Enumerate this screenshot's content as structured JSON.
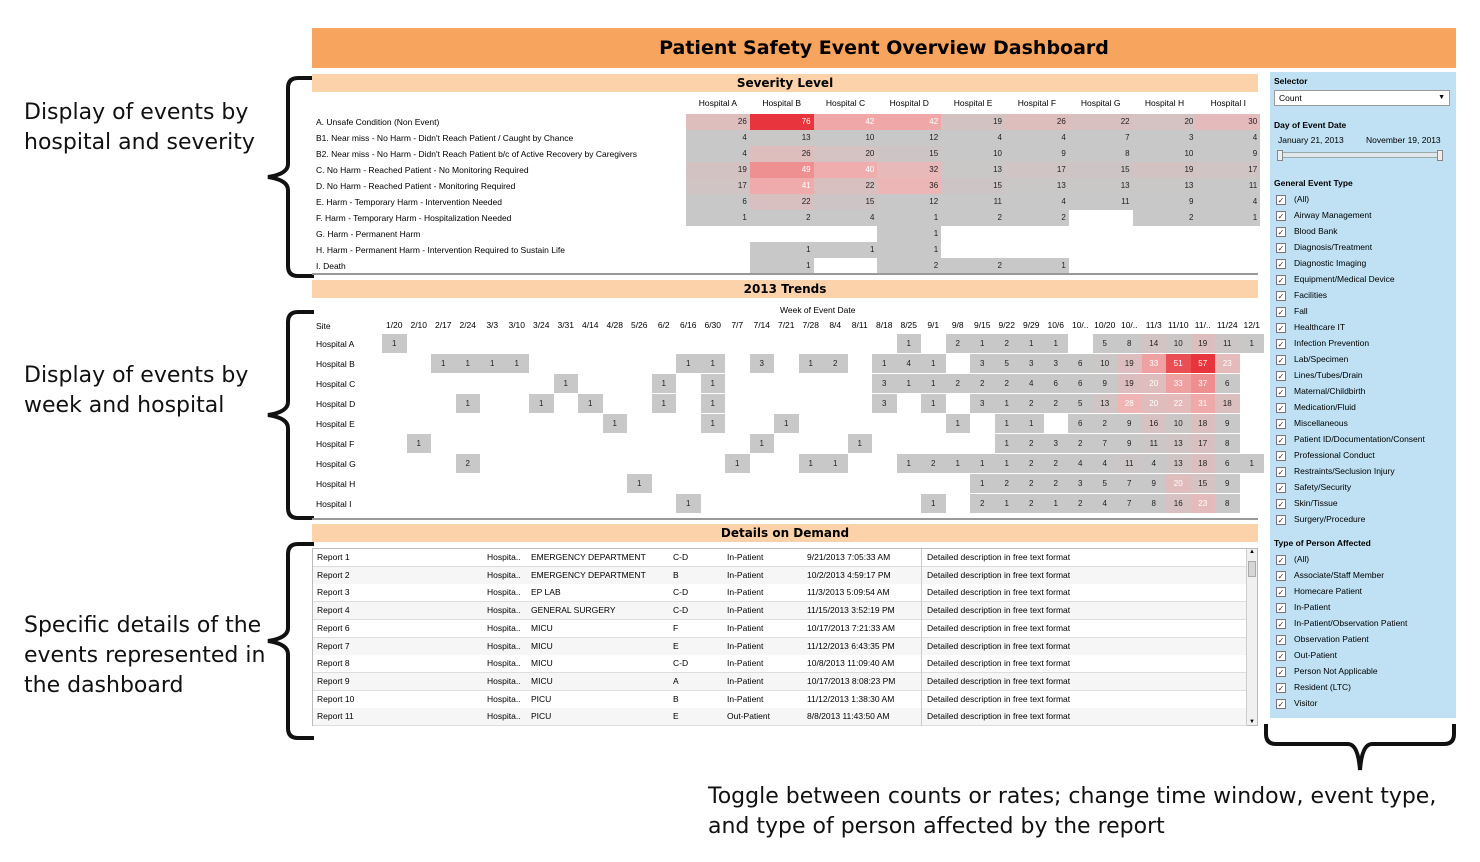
{
  "title": "Patient Safety Event Overview Dashboard",
  "annotations": {
    "a1": [
      "Display of events by",
      "hospital and severity"
    ],
    "a2": [
      "Display of events by",
      "week and hospital"
    ],
    "a3": [
      "Specific details of the",
      "events represented in",
      "the dashboard"
    ],
    "a4": [
      "Toggle between counts or rates; change time window, event type,",
      "and type of person affected by the report"
    ]
  },
  "severity": {
    "header": "Severity Level",
    "hospitals": [
      "Hospital A",
      "Hospital B",
      "Hospital C",
      "Hospital D",
      "Hospital E",
      "Hospital F",
      "Hospital G",
      "Hospital H",
      "Hospital I"
    ],
    "rows": [
      {
        "label": "A. Unsafe Condition (Non Event)",
        "values": [
          26,
          76,
          42,
          42,
          19,
          26,
          22,
          20,
          30
        ]
      },
      {
        "label": "B1. Near miss - No Harm - Didn't Reach Patient / Caught by Chance",
        "values": [
          4,
          13,
          10,
          12,
          4,
          4,
          7,
          3,
          4
        ]
      },
      {
        "label": "B2. Near miss - No Harm - Didn't Reach Patient b/c of Active Recovery by Caregivers",
        "values": [
          4,
          26,
          20,
          15,
          10,
          9,
          8,
          10,
          9
        ]
      },
      {
        "label": "C. No Harm - Reached Patient - No Monitoring Required",
        "values": [
          19,
          49,
          40,
          32,
          13,
          17,
          15,
          19,
          17
        ]
      },
      {
        "label": "D. No Harm - Reached Patient - Monitoring Required",
        "values": [
          17,
          41,
          22,
          36,
          15,
          13,
          13,
          13,
          11
        ]
      },
      {
        "label": "E. Harm - Temporary Harm - Intervention Needed",
        "values": [
          6,
          22,
          15,
          12,
          11,
          4,
          11,
          9,
          4
        ]
      },
      {
        "label": "F. Harm - Temporary Harm - Hospitalization Needed",
        "values": [
          1,
          2,
          4,
          1,
          2,
          2,
          null,
          2,
          1
        ]
      },
      {
        "label": "G. Harm - Permanent Harm",
        "values": [
          null,
          null,
          null,
          1,
          null,
          null,
          null,
          null,
          null
        ]
      },
      {
        "label": "H. Harm - Permanent Harm - Intervention Required to Sustain Life",
        "values": [
          null,
          1,
          1,
          1,
          null,
          null,
          null,
          null,
          null
        ]
      },
      {
        "label": "I. Death",
        "values": [
          null,
          1,
          null,
          2,
          2,
          1,
          null,
          null,
          null
        ]
      }
    ]
  },
  "trends": {
    "header": "2013 Trends",
    "subheader": "Week of Event Date",
    "site_label": "Site",
    "weeks": [
      "1/20",
      "2/10",
      "2/17",
      "2/24",
      "3/3",
      "3/10",
      "3/24",
      "3/31",
      "4/14",
      "4/28",
      "5/26",
      "6/2",
      "6/16",
      "6/30",
      "7/7",
      "7/14",
      "7/21",
      "7/28",
      "8/4",
      "8/11",
      "8/18",
      "8/25",
      "9/1",
      "9/8",
      "9/15",
      "9/22",
      "9/29",
      "10/6",
      "10/..",
      "10/20",
      "10/..",
      "11/3",
      "11/10",
      "11/..",
      "11/24",
      "12/1"
    ],
    "rows": [
      {
        "site": "Hospital A",
        "values": [
          1,
          null,
          null,
          null,
          null,
          null,
          null,
          null,
          null,
          null,
          null,
          null,
          null,
          null,
          null,
          null,
          null,
          null,
          null,
          null,
          null,
          1,
          null,
          2,
          1,
          2,
          1,
          1,
          null,
          5,
          8,
          14,
          10,
          19,
          11,
          1
        ]
      },
      {
        "site": "Hospital B",
        "values": [
          null,
          null,
          1,
          1,
          1,
          1,
          null,
          null,
          null,
          null,
          null,
          null,
          1,
          1,
          null,
          3,
          null,
          1,
          2,
          null,
          1,
          4,
          1,
          null,
          3,
          5,
          3,
          3,
          6,
          10,
          19,
          33,
          51,
          57,
          23,
          null
        ]
      },
      {
        "site": "Hospital C",
        "values": [
          null,
          null,
          null,
          null,
          null,
          null,
          null,
          1,
          null,
          null,
          null,
          1,
          null,
          1,
          null,
          null,
          null,
          null,
          null,
          null,
          3,
          1,
          1,
          2,
          2,
          2,
          4,
          6,
          6,
          9,
          19,
          20,
          33,
          37,
          6,
          null
        ]
      },
      {
        "site": "Hospital D",
        "values": [
          null,
          null,
          null,
          1,
          null,
          null,
          1,
          null,
          1,
          null,
          null,
          1,
          null,
          1,
          null,
          null,
          null,
          null,
          null,
          null,
          3,
          null,
          1,
          null,
          3,
          1,
          2,
          2,
          5,
          13,
          28,
          20,
          22,
          31,
          18,
          null
        ]
      },
      {
        "site": "Hospital E",
        "values": [
          null,
          null,
          null,
          null,
          null,
          null,
          null,
          null,
          null,
          1,
          null,
          null,
          null,
          1,
          null,
          null,
          1,
          null,
          null,
          null,
          null,
          null,
          null,
          1,
          null,
          1,
          1,
          null,
          6,
          2,
          9,
          16,
          10,
          18,
          9,
          null
        ]
      },
      {
        "site": "Hospital F",
        "values": [
          null,
          1,
          null,
          null,
          null,
          null,
          null,
          null,
          null,
          null,
          null,
          null,
          null,
          null,
          null,
          1,
          null,
          null,
          null,
          1,
          null,
          null,
          null,
          null,
          null,
          1,
          2,
          3,
          2,
          7,
          9,
          11,
          13,
          17,
          8,
          null
        ]
      },
      {
        "site": "Hospital G",
        "values": [
          null,
          null,
          null,
          2,
          null,
          null,
          null,
          null,
          null,
          null,
          null,
          null,
          null,
          null,
          1,
          null,
          null,
          1,
          1,
          null,
          null,
          1,
          2,
          1,
          1,
          1,
          2,
          2,
          4,
          4,
          11,
          4,
          13,
          18,
          6,
          1
        ]
      },
      {
        "site": "Hospital H",
        "values": [
          null,
          null,
          null,
          null,
          null,
          null,
          null,
          null,
          null,
          null,
          1,
          null,
          null,
          null,
          null,
          null,
          null,
          null,
          null,
          null,
          null,
          null,
          null,
          null,
          1,
          2,
          2,
          2,
          3,
          5,
          7,
          9,
          20,
          15,
          9,
          null
        ]
      },
      {
        "site": "Hospital I",
        "values": [
          null,
          null,
          null,
          null,
          null,
          null,
          null,
          null,
          null,
          null,
          null,
          null,
          1,
          null,
          null,
          null,
          null,
          null,
          null,
          null,
          null,
          null,
          1,
          null,
          2,
          1,
          2,
          1,
          2,
          4,
          7,
          8,
          16,
          23,
          8,
          null
        ]
      }
    ]
  },
  "details": {
    "header": "Details on Demand",
    "rows": [
      {
        "report": "Report 1",
        "hospital": "Hospita..",
        "dept": "EMERGENCY DEPARTMENT",
        "sev": "C-D",
        "pt": "In-Patient",
        "date": "9/21/2013 7:05:33 AM",
        "desc": "Detailed description in free text format"
      },
      {
        "report": "Report 2",
        "hospital": "Hospita..",
        "dept": "EMERGENCY DEPARTMENT",
        "sev": "B",
        "pt": "In-Patient",
        "date": "10/2/2013 4:59:17 PM",
        "desc": "Detailed description in free text format"
      },
      {
        "report": "Report 3",
        "hospital": "Hospita..",
        "dept": "EP LAB",
        "sev": "C-D",
        "pt": "In-Patient",
        "date": "11/3/2013 5:09:54 AM",
        "desc": "Detailed description in free text format"
      },
      {
        "report": "Report 4",
        "hospital": "Hospita..",
        "dept": "GENERAL SURGERY",
        "sev": "C-D",
        "pt": "In-Patient",
        "date": "11/15/2013 3:52:19 PM",
        "desc": "Detailed description in free text format"
      },
      {
        "report": "Report 6",
        "hospital": "Hospita..",
        "dept": "MICU",
        "sev": "F",
        "pt": "In-Patient",
        "date": "10/17/2013 7:21:33 AM",
        "desc": "Detailed description in free text format"
      },
      {
        "report": "Report 7",
        "hospital": "Hospita..",
        "dept": "MICU",
        "sev": "E",
        "pt": "In-Patient",
        "date": "11/12/2013 6:43:35 PM",
        "desc": "Detailed description in free text format"
      },
      {
        "report": "Report 8",
        "hospital": "Hospita..",
        "dept": "MICU",
        "sev": "C-D",
        "pt": "In-Patient",
        "date": "10/8/2013 11:09:40 AM",
        "desc": "Detailed description in free text format"
      },
      {
        "report": "Report 9",
        "hospital": "Hospita..",
        "dept": "MICU",
        "sev": "A",
        "pt": "In-Patient",
        "date": "10/17/2013 8:08:23 PM",
        "desc": "Detailed description in free text format"
      },
      {
        "report": "Report 10",
        "hospital": "Hospita..",
        "dept": "PICU",
        "sev": "B",
        "pt": "In-Patient",
        "date": "11/12/2013 1:38:30 AM",
        "desc": "Detailed description in free text format"
      },
      {
        "report": "Report 11",
        "hospital": "Hospita..",
        "dept": "PICU",
        "sev": "E",
        "pt": "Out-Patient",
        "date": "8/8/2013 11:43:50 AM",
        "desc": "Detailed description in free text format"
      }
    ]
  },
  "sidebar": {
    "selector_label": "Selector",
    "selector_value": "Count",
    "day_label": "Day of Event Date",
    "date_start": "January 21, 2013",
    "date_end": "November 19, 2013",
    "event_type_label": "General Event Type",
    "event_types": [
      "(All)",
      "Airway Management",
      "Blood Bank",
      "Diagnosis/Treatment",
      "Diagnostic Imaging",
      "Equipment/Medical Device",
      "Facilities",
      "Fall",
      "Healthcare IT",
      "Infection Prevention",
      "Lab/Specimen",
      "Lines/Tubes/Drain",
      "Maternal/Childbirth",
      "Medication/Fluid",
      "Miscellaneous",
      "Patient ID/Documentation/Consent",
      "Professional Conduct",
      "Restraints/Seclusion Injury",
      "Safety/Security",
      "Skin/Tissue",
      "Surgery/Procedure"
    ],
    "person_label": "Type of Person Affected",
    "person_types": [
      "(All)",
      "Associate/Staff Member",
      "Homecare Patient",
      "In-Patient",
      "In-Patient/Observation Patient",
      "Observation Patient",
      "Out-Patient",
      "Person Not Applicable",
      "Resident (LTC)",
      "Visitor"
    ]
  },
  "colors": {
    "title_bg": "#f7a45e",
    "section_bg": "#fbd2aa",
    "sidebar_bg": "#bfe1f3",
    "low": "#c8c8c8",
    "high": "#e8343c"
  }
}
